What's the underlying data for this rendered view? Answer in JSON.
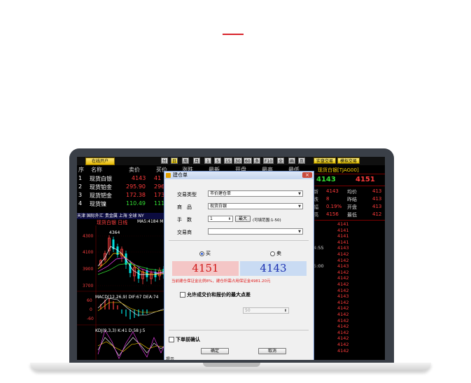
{
  "toolbar": {
    "open_account": "在线开户",
    "timeframes": [
      "分",
      "日",
      "周",
      "月",
      "1",
      "5",
      "15",
      "30",
      "60",
      "多",
      "F10",
      "全",
      "画",
      "页"
    ],
    "right_buttons": [
      "实盘交易",
      "模拟交易"
    ]
  },
  "quote_table": {
    "headers": [
      "序",
      "名称",
      "卖价",
      "买价",
      "涨跌",
      "最新",
      "开盘",
      "最高",
      "最低"
    ],
    "rows": [
      {
        "no": "1",
        "name": "现货白银",
        "sell": "4143",
        "buy": "41"
      },
      {
        "no": "2",
        "name": "现货铂金",
        "sell": "295.90",
        "buy": "296."
      },
      {
        "no": "3",
        "name": "现货钯金",
        "sell": "172.38",
        "buy": "173."
      },
      {
        "no": "4",
        "name": "现货镍",
        "sell": "110.49",
        "buy": "111."
      }
    ]
  },
  "chart": {
    "tabs": "天津 国际外汇 贵金属 上海 全球 NY",
    "title": "现货白银 日线",
    "ma": "MA5:4184 M",
    "price_labels": [
      "4364",
      "4300",
      "4100",
      "3900",
      "3700"
    ],
    "macd": "MACD(12,26,9) DIF:67 DEA:74",
    "macd_scale": [
      "60",
      "0",
      "-60"
    ],
    "kdj": "KDJ(9,3,3) K:41 D:58 J:5"
  },
  "right_panel": {
    "title": "现货白银[TJAG00]",
    "price_a": "4143",
    "price_b": "4151",
    "stats": [
      {
        "l": "新",
        "v": "4143",
        "k": "均价",
        "v2": "413"
      },
      {
        "l": "跌",
        "v": "8",
        "k": "昨结",
        "v2": "413"
      },
      {
        "l": "幅",
        "v": "0.19%",
        "k": "开盘",
        "v2": "413"
      },
      {
        "l": "高",
        "v": "4156",
        "k": "最低",
        "v2": "412"
      }
    ],
    "ticks": [
      {
        "t": "",
        "p": "4141"
      },
      {
        "t": "",
        "p": "4141"
      },
      {
        "t": "",
        "p": "4141"
      },
      {
        "t": "",
        "p": "4141"
      },
      {
        "t": "4:55",
        "p": "4143"
      },
      {
        "t": "",
        "p": "4142"
      },
      {
        "t": "",
        "p": "4142"
      },
      {
        "t": "5:00",
        "p": "4143"
      },
      {
        "t": "",
        "p": "4142"
      },
      {
        "t": "",
        "p": "4142"
      },
      {
        "t": "",
        "p": "4142"
      },
      {
        "t": "",
        "p": "4142"
      },
      {
        "t": "",
        "p": "4143"
      },
      {
        "t": "",
        "p": "4142"
      },
      {
        "t": "",
        "p": "4142"
      },
      {
        "t": "",
        "p": "4142"
      },
      {
        "t": "",
        "p": "4142"
      },
      {
        "t": "",
        "p": "4142"
      },
      {
        "t": "",
        "p": "4142"
      },
      {
        "t": "",
        "p": "4142"
      },
      {
        "t": "",
        "p": "4142"
      },
      {
        "t": "",
        "p": "4142"
      }
    ]
  },
  "dialog": {
    "title": "建仓单",
    "close": "×",
    "trade_type_label": "交易类型",
    "trade_type_value": "市价建仓单",
    "product_label": "商　品",
    "product_value": "现货白银",
    "lots_label": "手　数",
    "lots_value": "1",
    "max_button": "最大",
    "lots_range": "(可填范围:1-50)",
    "exchange_label": "交易商",
    "exchange_value": "",
    "buy_label": "买",
    "sell_label": "卖",
    "buy_price": "4151",
    "sell_price": "4143",
    "margin_note": "当前建仓保证金比例8%，建仓所需占用保证金4981.20元",
    "allow_diff_label": "允许成交价和报价的最大点差",
    "diff_value": "50",
    "confirm_before_label": "下单前确认",
    "ok_button": "确定",
    "cancel_button": "取消",
    "hint_label": "提示"
  }
}
